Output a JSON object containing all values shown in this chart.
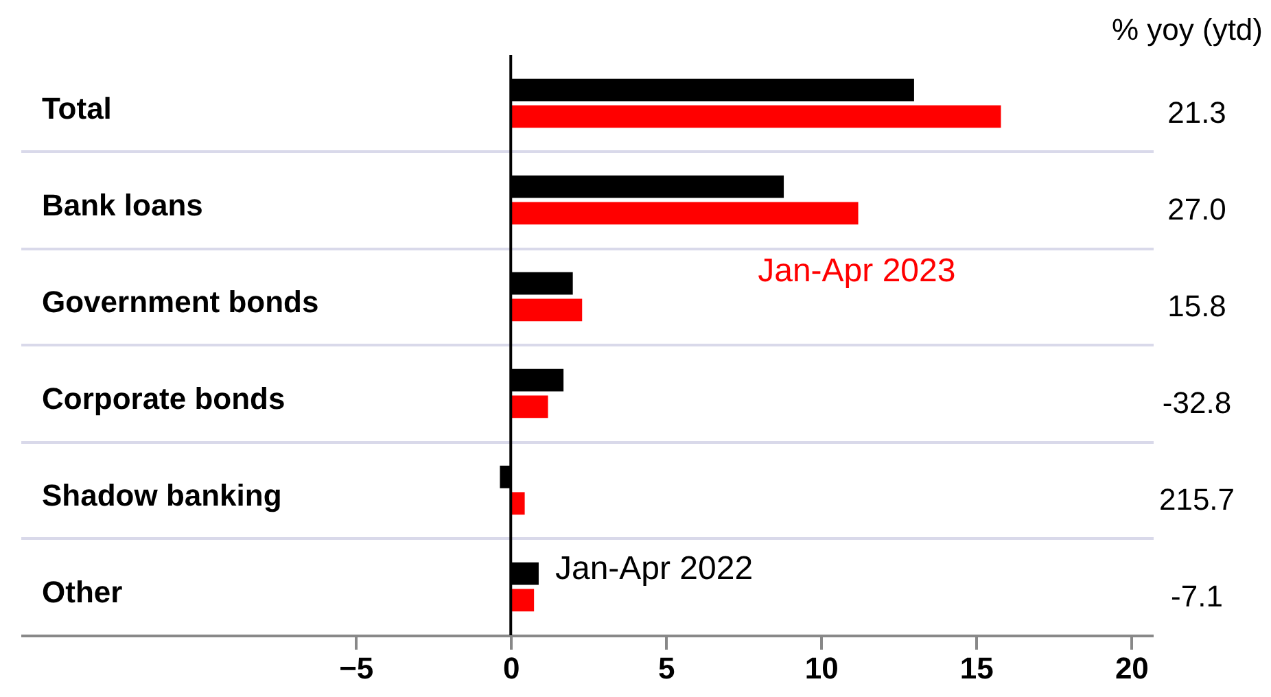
{
  "chart_data": {
    "type": "bar",
    "orientation": "horizontal",
    "categories": [
      "Total",
      "Bank loans",
      "Government bonds",
      "Corporate bonds",
      "Shadow banking",
      "Other"
    ],
    "series": [
      {
        "name": "Jan-Apr 2022",
        "color": "#000000",
        "values": [
          13.0,
          8.8,
          2.0,
          1.7,
          -0.35,
          0.9
        ]
      },
      {
        "name": "Jan-Apr 2023",
        "color": "#ff0000",
        "values": [
          15.8,
          11.2,
          2.3,
          1.2,
          0.45,
          0.75
        ]
      }
    ],
    "xlim": [
      -15.8,
      20.7
    ],
    "xticks": [
      -5,
      0,
      5,
      10,
      15,
      20
    ],
    "grid": "y",
    "legend": false,
    "ref_lines": [
      {
        "axis": "x",
        "value": 0
      }
    ],
    "annotations": [
      "% yoy (ytd)",
      "21.3",
      "27.0",
      "15.8",
      "-32.8",
      "215.7",
      "-7.1"
    ]
  }
}
